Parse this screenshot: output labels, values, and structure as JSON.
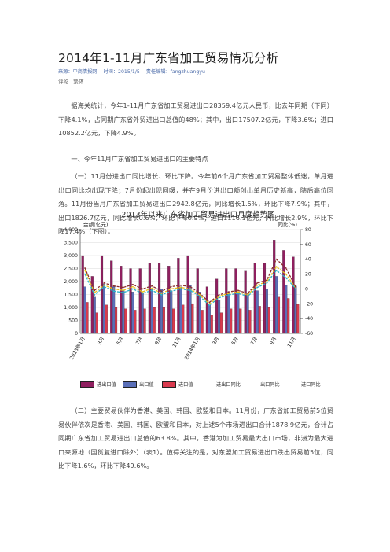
{
  "article": {
    "title": "2014年1-11月广东省加工贸易情况分析",
    "source": "来源：中商情报网",
    "time": "时间：2015/1/5",
    "editor": "责任编辑：fangzhuangyu",
    "link_comment": "评论",
    "link_traditional": "繁体",
    "p1": "据海关统计，今年1-11月广东省加工贸易进出口28359.4亿元人民币，比去年同期（下同）下降4.1%，占同期广东省外贸进出口总值的48%；其中，出口17507.2亿元，下降3.6%；进口10852.2亿元，下降4.9%。",
    "h1": "一、今年11月广东省加工贸易进出口的主要特点",
    "p2": "（一）11月份进出口同比增长、环比下降。今年前6个月广东省加工贸易整体低迷，单月进出口同比均出现下降；7月份起出现回暖，并在9月份进出口额创出单月历史新高，随后高位回落。11月份当月广东省加工贸易进出口2942.8亿元，同比增长1.5%，环比下降7.9%；其中，出口1826.7亿元，同比增长0.6%，环比下降0.9%；进口1116.1亿元，同比增长2.9%，环比下降17.4%（下图）。",
    "p3": "（二）主要贸易伙伴为香港、美国、韩国、欧盟和日本。11月份，广东省加工贸易前5位贸易伙伴依次是香港、美国、韩国、欧盟和日本，对上述5个市场进出口合计1878.9亿元，合计占同期广东省加工贸易进出口总值的63.8%。其中，香港为加工贸易最大出口市场，非洲为最大进口来源地（国货复进口除外）（表1）。值得关注的是，对东盟加工贸易进出口跌出贸易前5位，同比下降1.6%，环比下降49.6%。"
  },
  "chart_data": {
    "type": "bar",
    "title": "2013年以来广东省加工贸易进出口月度趋势图",
    "ylabel_left": "金额(亿元)",
    "ylabel_right": "同比(%)",
    "ylim_left": [
      0,
      4000
    ],
    "ylim_right": [
      -60,
      80
    ],
    "left_ticks": [
      "0",
      "500",
      "1,000",
      "1,500",
      "2,000",
      "2,500",
      "3,000",
      "3,500",
      "4,000"
    ],
    "right_ticks": [
      "-60",
      "-40",
      "-20",
      "0",
      "20",
      "40",
      "60",
      "80"
    ],
    "x_tick_labels": [
      "2013年1月",
      "3月",
      "5月",
      "7月",
      "9月",
      "11月",
      "2014年1月",
      "3月",
      "5月",
      "7月",
      "9月",
      "11月"
    ],
    "x_tick_index": [
      0,
      2,
      4,
      6,
      8,
      10,
      12,
      14,
      16,
      18,
      20,
      22
    ],
    "n_months": 23,
    "series": [
      {
        "name": "进出口值",
        "kind": "bar",
        "color": "#8f1f5f",
        "values": [
          3000,
          2200,
          3000,
          2800,
          2600,
          2500,
          2500,
          2700,
          2700,
          2600,
          2900,
          3000,
          2500,
          1800,
          2100,
          2500,
          2500,
          2400,
          2700,
          2700,
          3600,
          3200,
          2950
        ]
      },
      {
        "name": "出口值",
        "kind": "bar",
        "color": "#5a6fb8",
        "values": [
          1800,
          1400,
          1900,
          1800,
          1650,
          1600,
          1550,
          1700,
          1700,
          1650,
          1800,
          1850,
          1600,
          1100,
          1300,
          1550,
          1550,
          1500,
          1650,
          1700,
          2200,
          1850,
          1830
        ]
      },
      {
        "name": "进口值",
        "kind": "bar",
        "color": "#d93a4e",
        "values": [
          1200,
          800,
          1100,
          1000,
          950,
          900,
          950,
          1000,
          1000,
          950,
          1100,
          1150,
          900,
          700,
          800,
          950,
          950,
          900,
          1050,
          1000,
          1400,
          1350,
          1120
        ]
      },
      {
        "name": "进出口同比",
        "kind": "line",
        "color": "#e8c21a",
        "values": [
          25,
          -5,
          5,
          0,
          -2,
          3,
          -4,
          1,
          -6,
          0,
          2,
          0,
          -8,
          -20,
          -10,
          -6,
          -4,
          -8,
          5,
          10,
          30,
          20,
          1.5
        ]
      },
      {
        "name": "出口同比",
        "kind": "line",
        "color": "#2ab5c9",
        "values": [
          20,
          -8,
          3,
          -3,
          -5,
          0,
          -6,
          -2,
          -8,
          -3,
          0,
          -2,
          -10,
          -22,
          -12,
          -8,
          -6,
          -10,
          2,
          8,
          25,
          15,
          0.6
        ]
      },
      {
        "name": "进口同比",
        "kind": "line",
        "color": "#8a2f2f",
        "values": [
          28,
          -2,
          8,
          4,
          2,
          6,
          0,
          4,
          -3,
          3,
          5,
          3,
          -6,
          -18,
          -8,
          -4,
          -2,
          -6,
          8,
          12,
          40,
          28,
          2.9
        ]
      }
    ]
  }
}
